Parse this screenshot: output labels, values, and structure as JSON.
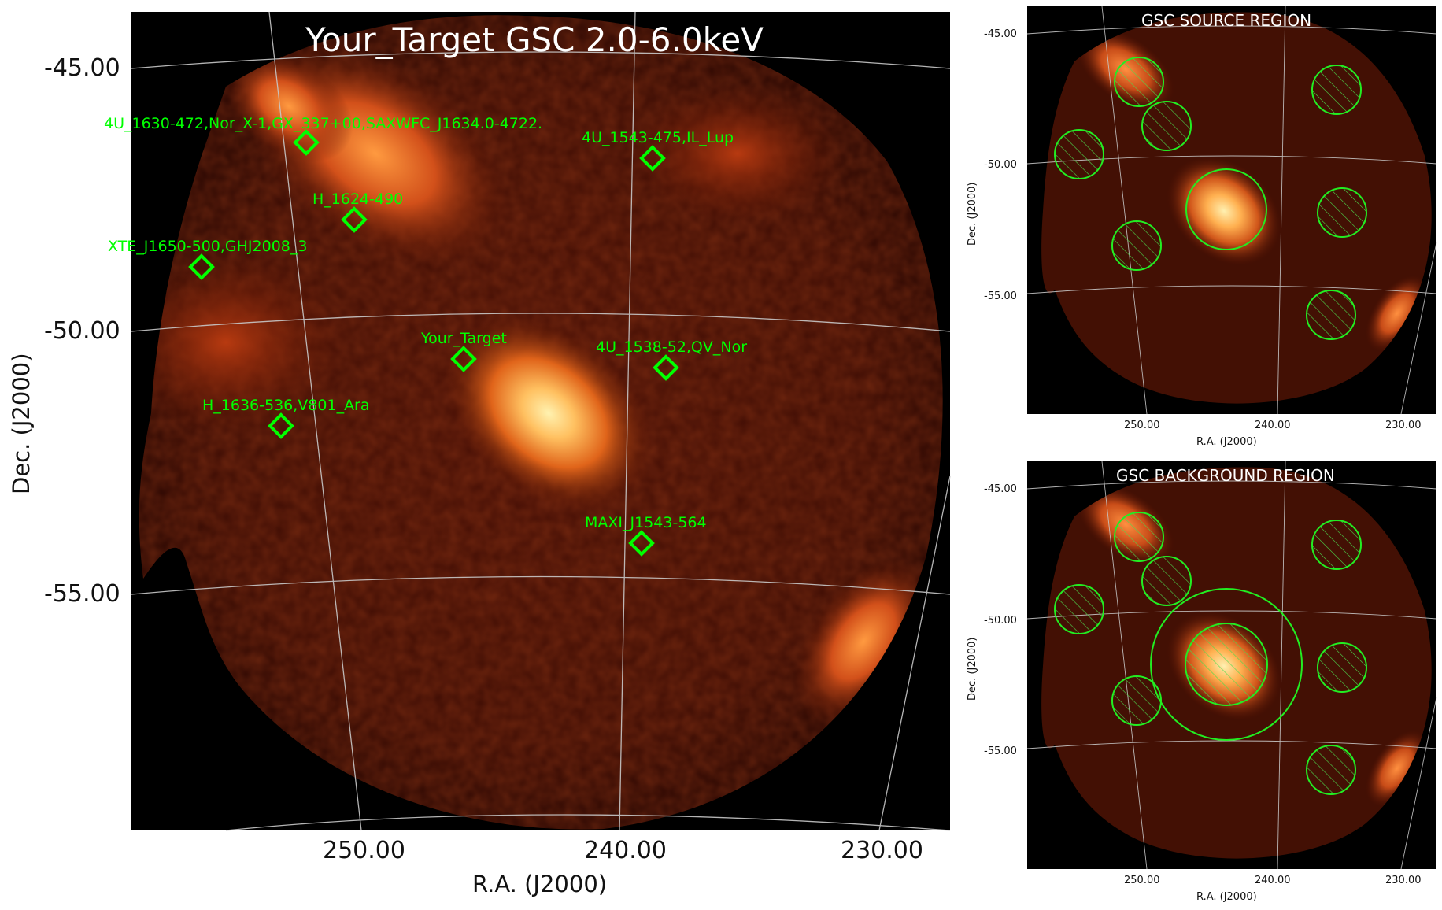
{
  "main": {
    "title": "Your_Target GSC 2.0-6.0keV",
    "xlabel": "R.A. (J2000)",
    "ylabel": "Dec. (J2000)",
    "yticks": [
      "-45.00",
      "-50.00",
      "-55.00"
    ],
    "xticks": [
      "250.00",
      "240.00",
      "230.00"
    ],
    "sources": [
      {
        "name": "4U_1630-472,Nor_X-1,GX_337+00,SAXWFC_J1634.0-4722."
      },
      {
        "name": "4U_1543-475,IL_Lup"
      },
      {
        "name": "H_1624-490"
      },
      {
        "name": "XTE_J1650-500,GHJ2008_3"
      },
      {
        "name": "Your_Target"
      },
      {
        "name": "4U_1538-52,QV_Nor"
      },
      {
        "name": "H_1636-536,V801_Ara"
      },
      {
        "name": "MAXI_J1543-564"
      }
    ],
    "marker_color": "#00ff00"
  },
  "source_panel": {
    "title": "GSC SOURCE REGION",
    "xlabel": "R.A. (J2000)",
    "ylabel": "Dec. (J2000)",
    "yticks": [
      "-45.00",
      "-50.00",
      "-55.00"
    ],
    "xticks": [
      "250.00",
      "240.00",
      "230.00"
    ]
  },
  "background_panel": {
    "title": "GSC BACKGROUND REGION",
    "xlabel": "R.A. (J2000)",
    "ylabel": "Dec. (J2000)",
    "yticks": [
      "-45.00",
      "-50.00",
      "-55.00"
    ],
    "xticks": [
      "250.00",
      "240.00",
      "230.00"
    ]
  },
  "colors": {
    "heat_dark": "#3a0a02",
    "heat_mid": "#8a2608",
    "heat_bright": "#ffd080",
    "grid": "#cfcfcf",
    "region": "#22ee22"
  }
}
